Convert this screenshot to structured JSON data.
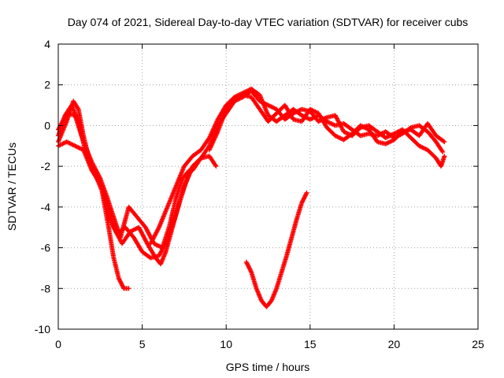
{
  "chart_data": {
    "type": "scatter",
    "title": "Day 074 of 2021, Sidereal Day-to-day VTEC variation (SDTVAR) for receiver cubs",
    "xlabel": "GPS time / hours",
    "ylabel": "SDTVAR / TECUs",
    "xlim": [
      0,
      25
    ],
    "ylim": [
      -10,
      4
    ],
    "grid": true,
    "marker": "plus",
    "color": "#ff0000",
    "x_ticks": [
      0,
      5,
      10,
      15,
      20,
      25
    ],
    "x_tick_labels": [
      "0",
      "5",
      "10",
      "15",
      "20",
      "25"
    ],
    "y_ticks": [
      -10,
      -8,
      -6,
      -4,
      -2,
      0,
      2,
      4
    ],
    "y_tick_labels": [
      "-10",
      "-8",
      "-6",
      "-4",
      "-2",
      "0",
      "2",
      "4"
    ],
    "series": [
      {
        "name": "arc-early-deep",
        "points": [
          [
            0,
            -0.8
          ],
          [
            0.5,
            0.2
          ],
          [
            0.9,
            1.2
          ],
          [
            1.2,
            0.8
          ],
          [
            1.5,
            -0.5
          ],
          [
            1.8,
            -1.5
          ],
          [
            2.2,
            -2.4
          ],
          [
            2.6,
            -3.2
          ],
          [
            3.0,
            -5.0
          ],
          [
            3.3,
            -6.5
          ],
          [
            3.6,
            -7.5
          ],
          [
            3.9,
            -8.0
          ],
          [
            4.2,
            -8.0
          ]
        ]
      },
      {
        "name": "arc-early-mid",
        "points": [
          [
            0,
            -0.5
          ],
          [
            0.4,
            0.5
          ],
          [
            0.8,
            1.0
          ],
          [
            1.2,
            0.2
          ],
          [
            1.6,
            -1.2
          ],
          [
            2.0,
            -2.2
          ],
          [
            2.5,
            -2.8
          ],
          [
            2.9,
            -3.8
          ],
          [
            3.3,
            -5.0
          ],
          [
            3.8,
            -5.8
          ],
          [
            4.3,
            -5.2
          ],
          [
            4.8,
            -5.0
          ],
          [
            5.3,
            -5.8
          ],
          [
            5.8,
            -6.5
          ],
          [
            6.1,
            -6.8
          ],
          [
            6.4,
            -6.2
          ],
          [
            6.8,
            -5.0
          ],
          [
            7.2,
            -3.8
          ],
          [
            7.6,
            -2.8
          ],
          [
            8.0,
            -2.0
          ]
        ]
      },
      {
        "name": "arc-early-upper",
        "points": [
          [
            0,
            -0.2
          ],
          [
            0.5,
            0.6
          ],
          [
            1.0,
            0.5
          ],
          [
            1.5,
            -0.8
          ],
          [
            2.0,
            -1.8
          ],
          [
            2.5,
            -2.6
          ],
          [
            2.9,
            -3.5
          ],
          [
            3.3,
            -4.5
          ],
          [
            3.7,
            -5.5
          ],
          [
            4.2,
            -4.0
          ],
          [
            4.7,
            -4.5
          ],
          [
            5.2,
            -5.0
          ],
          [
            5.7,
            -5.8
          ],
          [
            6.2,
            -6.0
          ],
          [
            6.6,
            -5.0
          ],
          [
            7.0,
            -3.6
          ],
          [
            7.4,
            -2.6
          ],
          [
            7.8,
            -2.2
          ]
        ]
      },
      {
        "name": "arc-early-low",
        "points": [
          [
            0,
            -1.0
          ],
          [
            0.5,
            -0.8
          ],
          [
            1.0,
            -1.0
          ],
          [
            1.5,
            -1.2
          ],
          [
            2.0,
            -2.2
          ],
          [
            2.6,
            -3.0
          ],
          [
            3.0,
            -4.5
          ],
          [
            3.5,
            -5.3
          ],
          [
            4.0,
            -5.0
          ],
          [
            4.5,
            -5.5
          ],
          [
            5.0,
            -6.2
          ],
          [
            5.5,
            -6.5
          ],
          [
            6.0,
            -6.4
          ],
          [
            6.5,
            -5.6
          ],
          [
            7.0,
            -4.4
          ],
          [
            7.5,
            -3.0
          ],
          [
            8.0,
            -2.0
          ],
          [
            8.5,
            -1.6
          ],
          [
            9.0,
            -1.5
          ],
          [
            9.4,
            -2.0
          ]
        ]
      },
      {
        "name": "arc-main-upper",
        "points": [
          [
            5.5,
            -5.8
          ],
          [
            6.0,
            -5.0
          ],
          [
            6.5,
            -4.0
          ],
          [
            7.0,
            -3.0
          ],
          [
            7.5,
            -2.0
          ],
          [
            8.0,
            -1.5
          ],
          [
            8.5,
            -1.2
          ],
          [
            9.0,
            -0.6
          ],
          [
            9.5,
            0.3
          ],
          [
            10.0,
            1.0
          ],
          [
            10.5,
            1.4
          ],
          [
            11.0,
            1.6
          ],
          [
            11.5,
            1.8
          ],
          [
            12.0,
            1.5
          ],
          [
            12.5,
            0.5
          ],
          [
            13.0,
            0.2
          ],
          [
            13.5,
            0.5
          ],
          [
            14.0,
            0.8
          ],
          [
            14.5,
            0.5
          ],
          [
            15.0,
            0.3
          ],
          [
            15.5,
            0.5
          ],
          [
            16.0,
            0.2
          ],
          [
            16.5,
            0.0
          ],
          [
            17.0,
            0.1
          ],
          [
            17.5,
            -0.2
          ],
          [
            18.0,
            -0.5
          ],
          [
            18.5,
            -0.4
          ],
          [
            19.0,
            -0.5
          ],
          [
            19.5,
            -0.3
          ],
          [
            20.0,
            -0.6
          ],
          [
            20.5,
            -0.4
          ],
          [
            21.0,
            -0.1
          ],
          [
            21.5,
            0.0
          ],
          [
            22.0,
            -0.3
          ],
          [
            22.5,
            -0.8
          ],
          [
            22.9,
            -1.3
          ]
        ]
      },
      {
        "name": "arc-main-lower",
        "points": [
          [
            8.0,
            -2.2
          ],
          [
            8.5,
            -1.6
          ],
          [
            9.0,
            -1.0
          ],
          [
            9.5,
            0.0
          ],
          [
            10.0,
            0.6
          ],
          [
            10.5,
            1.2
          ],
          [
            11.0,
            1.4
          ],
          [
            11.5,
            1.7
          ],
          [
            12.0,
            1.2
          ],
          [
            12.5,
            1.0
          ],
          [
            13.0,
            0.8
          ],
          [
            13.5,
            0.3
          ],
          [
            14.0,
            0.6
          ],
          [
            14.5,
            0.8
          ],
          [
            15.0,
            0.7
          ],
          [
            15.5,
            0.2
          ],
          [
            16.0,
            0.4
          ],
          [
            16.5,
            0.5
          ],
          [
            17.0,
            -0.3
          ],
          [
            17.5,
            -0.5
          ],
          [
            18.0,
            -0.1
          ],
          [
            18.5,
            0.0
          ],
          [
            19.0,
            -0.3
          ],
          [
            19.5,
            -0.6
          ],
          [
            20.0,
            -0.4
          ],
          [
            20.5,
            -0.2
          ],
          [
            21.0,
            -0.6
          ],
          [
            21.5,
            -1.0
          ],
          [
            22.0,
            -1.2
          ],
          [
            22.5,
            -1.6
          ],
          [
            22.8,
            -2.0
          ],
          [
            23.0,
            -1.5
          ]
        ]
      },
      {
        "name": "arc-main-mid",
        "points": [
          [
            9.0,
            -1.2
          ],
          [
            9.5,
            -0.3
          ],
          [
            10.0,
            0.8
          ],
          [
            10.5,
            1.3
          ],
          [
            11.0,
            1.5
          ],
          [
            11.5,
            1.4
          ],
          [
            12.0,
            0.8
          ],
          [
            12.5,
            0.2
          ],
          [
            13.0,
            0.6
          ],
          [
            13.5,
            1.0
          ],
          [
            14.0,
            0.3
          ],
          [
            14.5,
            0.2
          ],
          [
            15.0,
            0.8
          ],
          [
            15.5,
            0.6
          ],
          [
            16.0,
            -0.1
          ],
          [
            16.5,
            -0.5
          ],
          [
            17.0,
            -0.7
          ],
          [
            17.5,
            -0.4
          ],
          [
            18.0,
            0.0
          ],
          [
            18.5,
            -0.2
          ],
          [
            19.0,
            -0.8
          ],
          [
            19.5,
            -0.9
          ],
          [
            20.0,
            -0.7
          ],
          [
            20.5,
            -0.3
          ],
          [
            21.0,
            -0.2
          ],
          [
            21.5,
            -0.5
          ],
          [
            22.0,
            0.1
          ],
          [
            22.5,
            -0.5
          ],
          [
            23.0,
            -0.8
          ]
        ]
      },
      {
        "name": "arc-late-dip",
        "points": [
          [
            11.2,
            -6.7
          ],
          [
            11.5,
            -7.2
          ],
          [
            11.8,
            -8.0
          ],
          [
            12.1,
            -8.6
          ],
          [
            12.4,
            -8.9
          ],
          [
            12.7,
            -8.6
          ],
          [
            13.0,
            -8.0
          ],
          [
            13.3,
            -7.2
          ],
          [
            13.6,
            -6.4
          ],
          [
            13.9,
            -5.5
          ],
          [
            14.2,
            -4.6
          ],
          [
            14.5,
            -3.8
          ],
          [
            14.8,
            -3.3
          ]
        ]
      }
    ]
  }
}
